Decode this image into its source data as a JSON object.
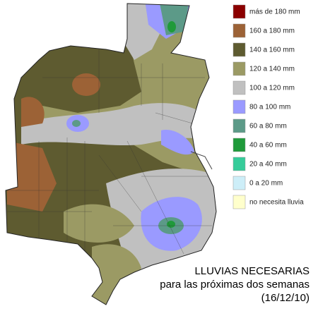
{
  "legend": {
    "items": [
      {
        "label": "más de 180 mm",
        "color": "#8b0000"
      },
      {
        "label": "160 a 180 mm",
        "color": "#9c6236"
      },
      {
        "label": "140 a 160 mm",
        "color": "#5e5b30"
      },
      {
        "label": "120 a 140 mm",
        "color": "#9b9a64"
      },
      {
        "label": "100 a 120 mm",
        "color": "#c0c0c0"
      },
      {
        "label": "80 a 100 mm",
        "color": "#9a9aff"
      },
      {
        "label": "60 a 80 mm",
        "color": "#5c9a88"
      },
      {
        "label": "40 a 60 mm",
        "color": "#1f9a3a"
      },
      {
        "label": "20 a 40 mm",
        "color": "#36cc9a"
      },
      {
        "label": "0 a 20 mm",
        "color": "#cdeef8"
      },
      {
        "label": "no necesita lluvia",
        "color": "#ffffcc"
      }
    ]
  },
  "title": {
    "lines": [
      "LLUVIAS NECESARIAS",
      "para las próximas dos semanas",
      "(16/12/10)"
    ]
  }
}
